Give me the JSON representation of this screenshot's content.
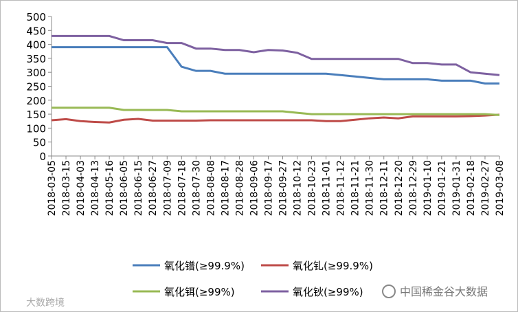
{
  "chart_data": {
    "type": "line",
    "categories": [
      "2018-03-05",
      "2018-03-15",
      "2018-04-03",
      "2018-04-13",
      "2018-05-16",
      "2018-06-05",
      "2018-06-15",
      "2018-06-27",
      "2018-07-09",
      "2018-07-18",
      "2018-07-30",
      "2018-08-08",
      "2018-08-17",
      "2018-08-28",
      "2018-09-06",
      "2018-09-17",
      "2018-09-27",
      "2018-10-12",
      "2018-10-23",
      "2018-11-01",
      "2018-11-12",
      "2018-11-21",
      "2018-11-30",
      "2018-12-11",
      "2018-12-20",
      "2018-12-29",
      "2019-01-10",
      "2019-01-21",
      "2019-01-31",
      "2019-02-18",
      "2019-02-27",
      "2019-03-08"
    ],
    "series": [
      {
        "name": "氧化镨(≥99.9%)",
        "color": "#4a7ebb",
        "values": [
          390,
          390,
          390,
          390,
          390,
          390,
          390,
          390,
          390,
          320,
          305,
          305,
          295,
          295,
          295,
          295,
          295,
          295,
          295,
          295,
          290,
          285,
          280,
          275,
          275,
          275,
          275,
          270,
          270,
          270,
          260,
          260
        ]
      },
      {
        "name": "氧化钆(≥99.9%)",
        "color": "#be4b48",
        "values": [
          128,
          132,
          125,
          122,
          120,
          130,
          133,
          127,
          127,
          127,
          127,
          128,
          128,
          128,
          128,
          128,
          128,
          128,
          128,
          125,
          125,
          130,
          135,
          138,
          135,
          142,
          142,
          142,
          142,
          143,
          145,
          148
        ]
      },
      {
        "name": "氧化铒(≥99%)",
        "color": "#98b954",
        "values": [
          173,
          173,
          173,
          173,
          173,
          165,
          165,
          165,
          165,
          160,
          160,
          160,
          160,
          160,
          160,
          160,
          160,
          155,
          150,
          150,
          150,
          150,
          150,
          150,
          150,
          150,
          150,
          150,
          150,
          150,
          150,
          147
        ]
      },
      {
        "name": "氧化钬(≥99%)",
        "color": "#7d60a0",
        "values": [
          430,
          430,
          430,
          430,
          430,
          415,
          415,
          415,
          405,
          405,
          385,
          385,
          380,
          380,
          372,
          380,
          378,
          370,
          348,
          348,
          348,
          348,
          348,
          348,
          348,
          333,
          333,
          328,
          328,
          300,
          295,
          290
        ]
      }
    ],
    "ylim": [
      0,
      500
    ],
    "yticks": [
      0,
      50,
      100,
      150,
      200,
      250,
      300,
      350,
      400,
      450,
      500
    ],
    "annotations": [
      "中国稀金谷大数据",
      "大数跨境"
    ]
  }
}
